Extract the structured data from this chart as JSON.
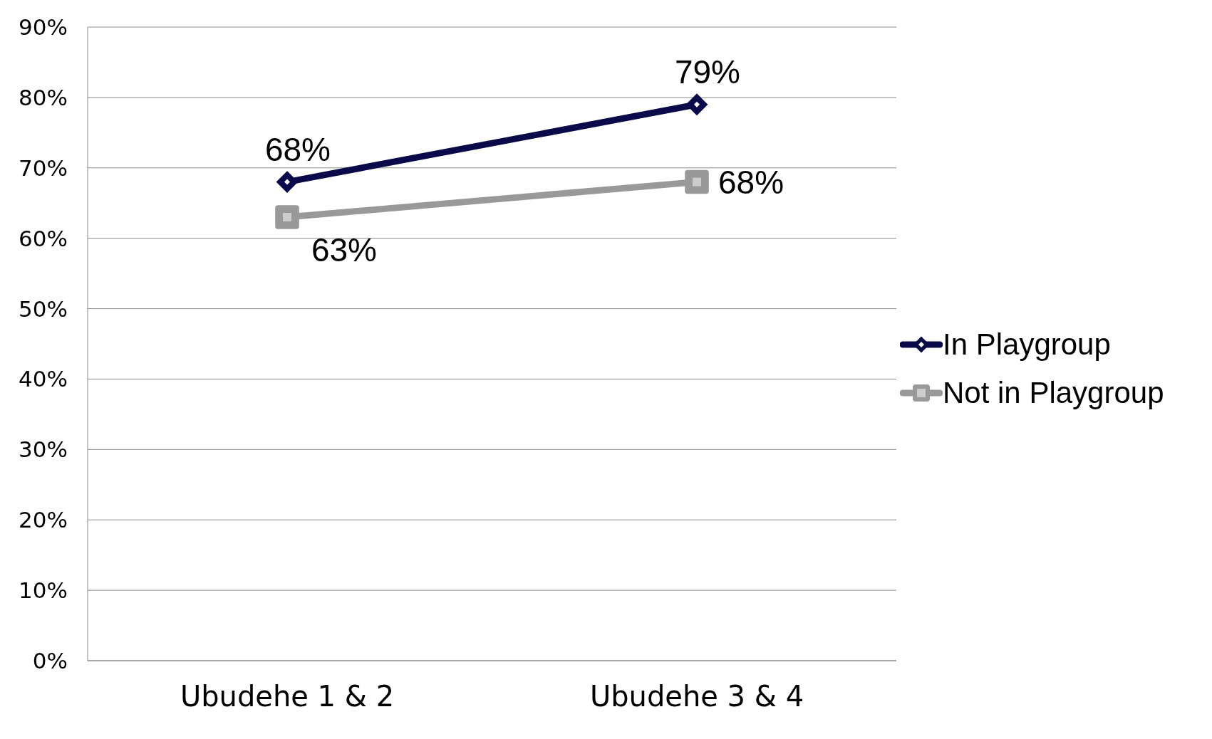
{
  "chart_data": {
    "type": "line",
    "categories": [
      "Ubudehe 1 & 2",
      "Ubudehe 3 & 4"
    ],
    "series": [
      {
        "name": "In Playgroup",
        "color": "#0a0a4a",
        "values": [
          68,
          79
        ],
        "marker": "diamond",
        "value_labels": [
          "68%",
          "79%"
        ]
      },
      {
        "name": "Not in Playgroup",
        "color": "#999999",
        "values": [
          63,
          68
        ],
        "marker": "square",
        "value_labels": [
          "63%",
          "68%"
        ]
      }
    ],
    "ylim": [
      0,
      90
    ],
    "yticks": [
      {
        "value": 0,
        "label": "0%"
      },
      {
        "value": 10,
        "label": "10%"
      },
      {
        "value": 20,
        "label": "20%"
      },
      {
        "value": 30,
        "label": "30%"
      },
      {
        "value": 40,
        "label": "40%"
      },
      {
        "value": 50,
        "label": "50%"
      },
      {
        "value": 60,
        "label": "60%"
      },
      {
        "value": 70,
        "label": "70%"
      },
      {
        "value": 80,
        "label": "80%"
      },
      {
        "value": 90,
        "label": "90%"
      }
    ],
    "grid": "y",
    "legend": "right",
    "line_style": "solid"
  }
}
